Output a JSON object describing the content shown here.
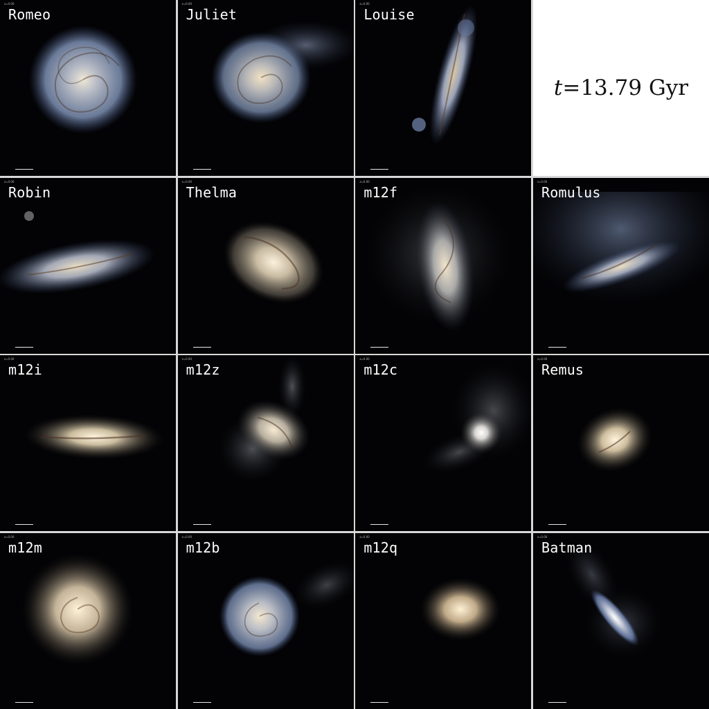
{
  "time_label": {
    "var": "t",
    "eq": "=",
    "value": "13.79",
    "unit": "Gyr"
  },
  "panels": [
    {
      "name": "Romeo"
    },
    {
      "name": "Juliet"
    },
    {
      "name": "Louise"
    },
    {
      "name": "Robin"
    },
    {
      "name": "Thelma"
    },
    {
      "name": "m12f"
    },
    {
      "name": "Romulus"
    },
    {
      "name": "m12i"
    },
    {
      "name": "m12z"
    },
    {
      "name": "m12c"
    },
    {
      "name": "Remus"
    },
    {
      "name": "m12m"
    },
    {
      "name": "m12b"
    },
    {
      "name": "m12q"
    },
    {
      "name": "Batman"
    }
  ],
  "colors": {
    "background": "#030305",
    "grid_lines": "#d8d8d8",
    "label": "#ffffff",
    "stellar_core": "#f4e6cc",
    "young_stars": "#9fb4dc",
    "dust_lanes": "#5a3a22"
  }
}
